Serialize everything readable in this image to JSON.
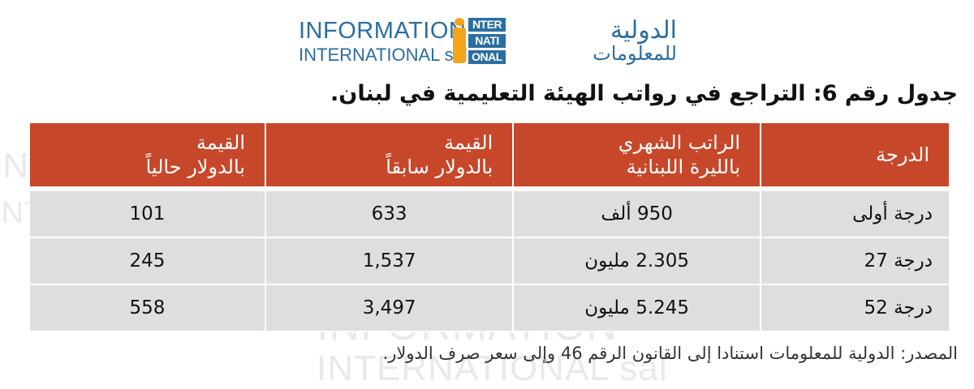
{
  "logo": {
    "latin_line1": "INFORMATION",
    "latin_line2": "INTERNATIONAL sal",
    "mark_rows": [
      "NTER",
      "NATI",
      "ONAL"
    ],
    "arabic_line1": "الدولية",
    "arabic_line2": "للمعلومات",
    "colors": {
      "blue": "#2b6ea0",
      "orange": "#f2a41b"
    }
  },
  "title": "جدول رقم 6: التراجع في رواتب الهيئة التعليمية في لبنان.",
  "table": {
    "header_color": "#c7472a",
    "row_color": "#dedede",
    "headers": {
      "grade": "الدرجة",
      "salary_line1": "الراتب الشهري",
      "salary_line2": "بالليرة اللبنانية",
      "prev_line1": "القيمة",
      "prev_line2": "بالدولار سابقاً",
      "now_line1": "القيمة",
      "now_line2": "بالدولار حالياً"
    },
    "rows": [
      {
        "grade": "درجة أولى",
        "salary": "950 ألف",
        "prev": "633",
        "now": "101"
      },
      {
        "grade": "درجة 27",
        "salary": "2.305 مليون",
        "prev": "1,537",
        "now": "245"
      },
      {
        "grade": "درجة 52",
        "salary": "5.245 مليون",
        "prev": "3,497",
        "now": "558"
      }
    ]
  },
  "source": "المصدر: الدولية للمعلومات استنادا إلى القانون الرقم 46 وإلى سعر صرف الدولار."
}
